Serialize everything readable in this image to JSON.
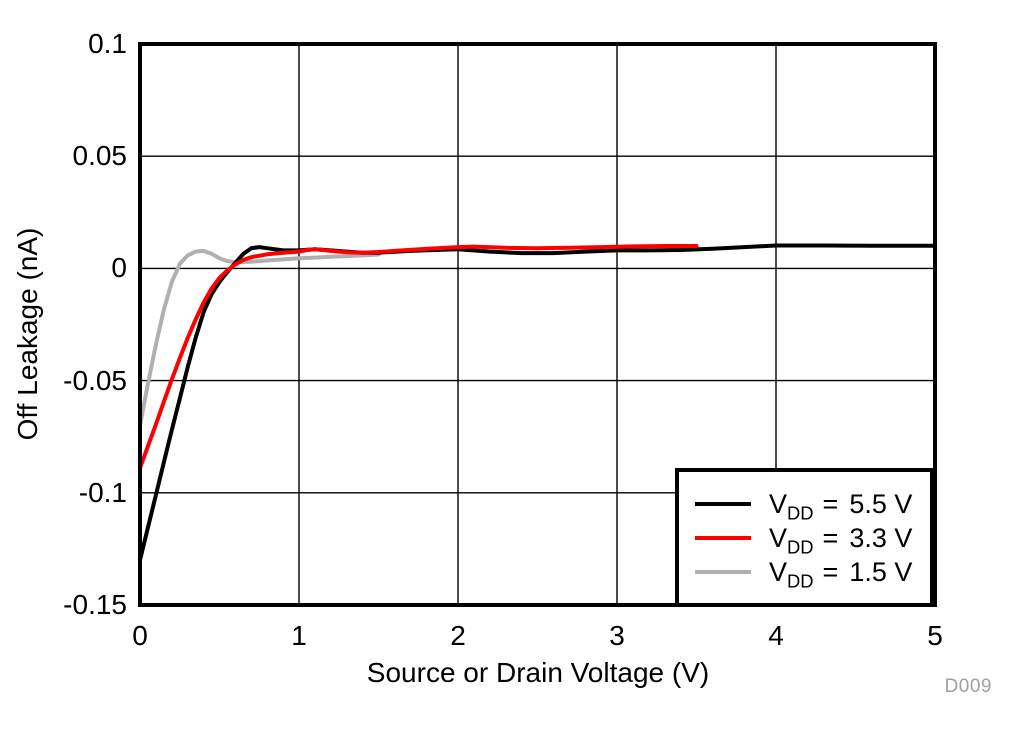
{
  "figure": {
    "id": "D009"
  },
  "colors": {
    "series_55": "#000000",
    "series_33": "#ff0000",
    "series_15": "#b0b0b0",
    "grid": "#000000",
    "border": "#000000",
    "figure_id_text": "#a0a0a0",
    "background": "#ffffff"
  },
  "axes": {
    "x": {
      "label": "Source or Drain Voltage (V)",
      "min": 0,
      "max": 5,
      "ticks": [
        0,
        1,
        2,
        3,
        4,
        5
      ],
      "tick_labels": [
        "0",
        "1",
        "2",
        "3",
        "4",
        "5"
      ],
      "gridlines": [
        1,
        2,
        3,
        4
      ]
    },
    "y": {
      "label": "Off Leakage (nA)",
      "min": -0.15,
      "max": 0.1,
      "ticks": [
        0.1,
        0.05,
        0,
        -0.05,
        -0.1,
        -0.15
      ],
      "tick_labels": [
        "0.1",
        "0.05",
        "0",
        "-0.05",
        "-0.1",
        "-0.15"
      ],
      "gridlines": [
        0.05,
        0,
        -0.05,
        -0.1
      ]
    }
  },
  "legend": {
    "entries": [
      {
        "sym": "V",
        "sub": "DD",
        "eq": "=",
        "value": "5.5 V",
        "color": "#000000"
      },
      {
        "sym": "V",
        "sub": "DD",
        "eq": "=",
        "value": "3.3 V",
        "color": "#ff0000"
      },
      {
        "sym": "V",
        "sub": "DD",
        "eq": "=",
        "value": "1.5 V",
        "color": "#b0b0b0"
      }
    ]
  },
  "chart_data": {
    "type": "line",
    "title": "",
    "xlabel": "Source or Drain Voltage (V)",
    "ylabel": "Off Leakage (nA)",
    "xlim": [
      0,
      5
    ],
    "ylim": [
      -0.15,
      0.1
    ],
    "grid": true,
    "legend_position": "lower right",
    "series": [
      {
        "id": "vdd-5v5",
        "name": "VDD = 5.5 V",
        "color": "#000000",
        "points": [
          [
            0,
            -0.13
          ],
          [
            0.05,
            -0.1155
          ],
          [
            0.1,
            -0.101
          ],
          [
            0.15,
            -0.0865
          ],
          [
            0.2,
            -0.072
          ],
          [
            0.25,
            -0.058
          ],
          [
            0.3,
            -0.044
          ],
          [
            0.35,
            -0.031
          ],
          [
            0.4,
            -0.0195
          ],
          [
            0.45,
            -0.0115
          ],
          [
            0.5,
            -0.006
          ],
          [
            0.55,
            -0.0015
          ],
          [
            0.6,
            0.0025
          ],
          [
            0.65,
            0.0065
          ],
          [
            0.7,
            0.009
          ],
          [
            0.75,
            0.0095
          ],
          [
            0.8,
            0.009
          ],
          [
            0.9,
            0.008
          ],
          [
            1.0,
            0.008
          ],
          [
            1.1,
            0.0085
          ],
          [
            1.2,
            0.008
          ],
          [
            1.3,
            0.0075
          ],
          [
            1.4,
            0.007
          ],
          [
            1.5,
            0.007
          ],
          [
            1.7,
            0.0078
          ],
          [
            1.9,
            0.0083
          ],
          [
            2.0,
            0.0085
          ],
          [
            2.2,
            0.0075
          ],
          [
            2.4,
            0.0068
          ],
          [
            2.6,
            0.0068
          ],
          [
            2.8,
            0.0075
          ],
          [
            3.0,
            0.008
          ],
          [
            3.2,
            0.008
          ],
          [
            3.4,
            0.0082
          ],
          [
            3.6,
            0.0088
          ],
          [
            3.8,
            0.0095
          ],
          [
            4.0,
            0.0102
          ],
          [
            4.3,
            0.0102
          ],
          [
            4.6,
            0.0101
          ],
          [
            5.0,
            0.0101
          ]
        ]
      },
      {
        "id": "vdd-3v3",
        "name": "VDD = 3.3 V",
        "color": "#ff0000",
        "points": [
          [
            0,
            -0.089
          ],
          [
            0.05,
            -0.0793
          ],
          [
            0.1,
            -0.0695
          ],
          [
            0.15,
            -0.0595
          ],
          [
            0.2,
            -0.0495
          ],
          [
            0.25,
            -0.04
          ],
          [
            0.3,
            -0.031
          ],
          [
            0.35,
            -0.0228
          ],
          [
            0.4,
            -0.0152
          ],
          [
            0.45,
            -0.009
          ],
          [
            0.5,
            -0.0042
          ],
          [
            0.55,
            -0.0008
          ],
          [
            0.6,
            0.0018
          ],
          [
            0.65,
            0.0038
          ],
          [
            0.7,
            0.005
          ],
          [
            0.8,
            0.0063
          ],
          [
            0.9,
            0.007
          ],
          [
            1.0,
            0.0075
          ],
          [
            1.05,
            0.0082
          ],
          [
            1.1,
            0.0085
          ],
          [
            1.2,
            0.0078
          ],
          [
            1.3,
            0.0072
          ],
          [
            1.4,
            0.007
          ],
          [
            1.5,
            0.0073
          ],
          [
            1.6,
            0.0078
          ],
          [
            1.8,
            0.0087
          ],
          [
            2.0,
            0.0095
          ],
          [
            2.1,
            0.0097
          ],
          [
            2.3,
            0.0092
          ],
          [
            2.5,
            0.009
          ],
          [
            2.7,
            0.0092
          ],
          [
            2.9,
            0.0095
          ],
          [
            3.1,
            0.0098
          ],
          [
            3.3,
            0.01
          ],
          [
            3.5,
            0.01
          ]
        ]
      },
      {
        "id": "vdd-1v5",
        "name": "VDD = 1.5 V",
        "color": "#b0b0b0",
        "points": [
          [
            0,
            -0.07
          ],
          [
            0.05,
            -0.0515
          ],
          [
            0.1,
            -0.034
          ],
          [
            0.15,
            -0.0185
          ],
          [
            0.2,
            -0.006
          ],
          [
            0.25,
            0.002
          ],
          [
            0.3,
            0.0058
          ],
          [
            0.35,
            0.0075
          ],
          [
            0.4,
            0.0078
          ],
          [
            0.45,
            0.0065
          ],
          [
            0.5,
            0.0045
          ],
          [
            0.55,
            0.0032
          ],
          [
            0.6,
            0.0028
          ],
          [
            0.7,
            0.003
          ],
          [
            0.8,
            0.0035
          ],
          [
            0.9,
            0.004
          ],
          [
            1.0,
            0.0045
          ],
          [
            1.1,
            0.0048
          ],
          [
            1.2,
            0.0052
          ],
          [
            1.3,
            0.0055
          ],
          [
            1.4,
            0.0058
          ],
          [
            1.5,
            0.0062
          ]
        ]
      }
    ]
  }
}
